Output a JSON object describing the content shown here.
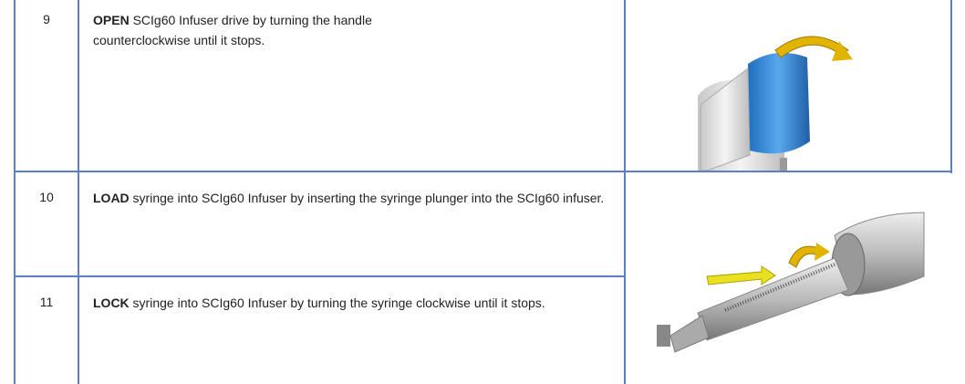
{
  "table": {
    "rows": [
      {
        "step": "9",
        "action": "OPEN",
        "lines": [
          " SCIg60 Infuser drive by turning the handle",
          "counterclockwise until it stops."
        ]
      },
      {
        "step": "10",
        "action": "LOAD",
        "lines": [
          " syringe into SCIg60 Infuser by inserting the syringe plunger into the SCIg60 infuser."
        ]
      },
      {
        "step": "11",
        "action": "LOCK",
        "lines": [
          " syringe into SCIg60 Infuser by turning the syringe clockwise until it stops."
        ]
      }
    ]
  }
}
